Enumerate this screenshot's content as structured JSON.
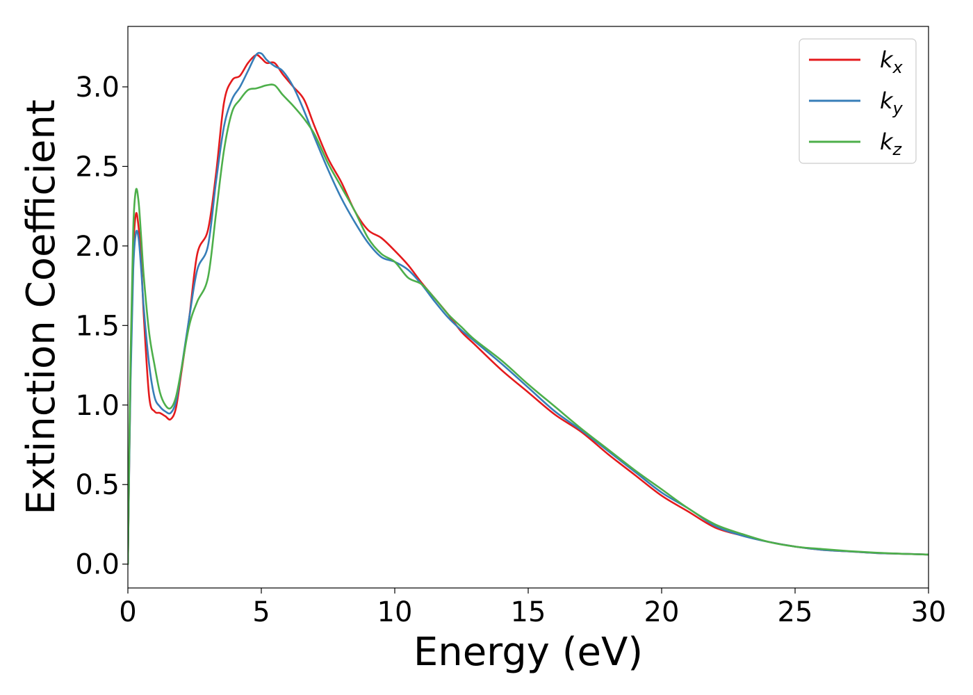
{
  "chart_data": {
    "type": "line",
    "title": "",
    "xlabel": "Energy (eV)",
    "ylabel": "Extinction Coefficient",
    "xlim": [
      0,
      30
    ],
    "ylim": [
      -0.15,
      3.38
    ],
    "xticks": [
      0,
      5,
      10,
      15,
      20,
      25,
      30
    ],
    "xtick_labels": [
      "0",
      "5",
      "10",
      "15",
      "20",
      "25",
      "30"
    ],
    "yticks": [
      0.0,
      0.5,
      1.0,
      1.5,
      2.0,
      2.5,
      3.0
    ],
    "ytick_labels": [
      "0.0",
      "0.5",
      "1.0",
      "1.5",
      "2.0",
      "2.5",
      "3.0"
    ],
    "grid": false,
    "legend_position": "top-right",
    "series": [
      {
        "name": "k",
        "subscript": "x",
        "color": "#e41a1c",
        "x": [
          0,
          0.1,
          0.2,
          0.3,
          0.4,
          0.5,
          0.6,
          0.8,
          1.0,
          1.2,
          1.4,
          1.6,
          1.8,
          2.0,
          2.3,
          2.6,
          3.0,
          3.3,
          3.6,
          3.9,
          4.2,
          4.5,
          4.8,
          5.0,
          5.2,
          5.5,
          5.8,
          6.2,
          6.6,
          7.0,
          7.5,
          8.0,
          8.5,
          9.0,
          9.5,
          10.0,
          10.5,
          11.0,
          11.5,
          12.0,
          12.5,
          13.0,
          14.0,
          15.0,
          16.0,
          17.0,
          18.0,
          19.0,
          20.0,
          21.0,
          22.0,
          23.0,
          24.0,
          25.0,
          26.0,
          27.0,
          28.0,
          29.0,
          30.0
        ],
        "values": [
          0.0,
          1.2,
          1.95,
          2.2,
          2.12,
          1.9,
          1.55,
          1.05,
          0.96,
          0.95,
          0.93,
          0.91,
          0.98,
          1.2,
          1.55,
          1.95,
          2.1,
          2.45,
          2.9,
          3.04,
          3.07,
          3.15,
          3.2,
          3.18,
          3.15,
          3.15,
          3.08,
          3.0,
          2.92,
          2.75,
          2.55,
          2.4,
          2.22,
          2.1,
          2.05,
          1.97,
          1.88,
          1.77,
          1.67,
          1.57,
          1.46,
          1.38,
          1.22,
          1.08,
          0.94,
          0.83,
          0.69,
          0.56,
          0.43,
          0.33,
          0.23,
          0.18,
          0.14,
          0.11,
          0.09,
          0.08,
          0.07,
          0.065,
          0.06
        ]
      },
      {
        "name": "k",
        "subscript": "y",
        "color": "#377eb8",
        "x": [
          0,
          0.1,
          0.2,
          0.3,
          0.4,
          0.5,
          0.6,
          0.8,
          1.0,
          1.2,
          1.4,
          1.6,
          1.8,
          2.0,
          2.3,
          2.6,
          3.0,
          3.3,
          3.6,
          3.9,
          4.2,
          4.5,
          4.8,
          5.0,
          5.2,
          5.5,
          5.8,
          6.2,
          6.6,
          7.0,
          7.5,
          8.0,
          8.5,
          9.0,
          9.5,
          10.0,
          10.5,
          11.0,
          11.5,
          12.0,
          12.5,
          13.0,
          14.0,
          15.0,
          16.0,
          17.0,
          18.0,
          19.0,
          20.0,
          21.0,
          22.0,
          23.0,
          24.0,
          25.0,
          26.0,
          27.0,
          28.0,
          29.0,
          30.0
        ],
        "values": [
          0.0,
          1.15,
          1.85,
          2.08,
          2.05,
          1.85,
          1.6,
          1.25,
          1.05,
          0.99,
          0.96,
          0.95,
          1.02,
          1.22,
          1.55,
          1.85,
          2.0,
          2.4,
          2.75,
          2.92,
          3.0,
          3.1,
          3.2,
          3.21,
          3.17,
          3.13,
          3.1,
          3.0,
          2.85,
          2.68,
          2.48,
          2.3,
          2.15,
          2.02,
          1.93,
          1.9,
          1.85,
          1.76,
          1.65,
          1.55,
          1.47,
          1.4,
          1.26,
          1.11,
          0.96,
          0.84,
          0.71,
          0.58,
          0.45,
          0.35,
          0.24,
          0.18,
          0.14,
          0.11,
          0.09,
          0.08,
          0.07,
          0.065,
          0.06
        ]
      },
      {
        "name": "k",
        "subscript": "z",
        "color": "#4daf4a",
        "x": [
          0,
          0.1,
          0.2,
          0.3,
          0.4,
          0.5,
          0.6,
          0.8,
          1.0,
          1.2,
          1.4,
          1.6,
          1.8,
          2.0,
          2.3,
          2.6,
          3.0,
          3.3,
          3.6,
          3.9,
          4.2,
          4.5,
          4.8,
          5.0,
          5.2,
          5.5,
          5.8,
          6.2,
          6.6,
          7.0,
          7.5,
          8.0,
          8.5,
          9.0,
          9.5,
          10.0,
          10.5,
          11.0,
          11.5,
          12.0,
          12.5,
          13.0,
          14.0,
          15.0,
          16.0,
          17.0,
          18.0,
          19.0,
          20.0,
          21.0,
          22.0,
          23.0,
          24.0,
          25.0,
          26.0,
          27.0,
          28.0,
          29.0,
          30.0
        ],
        "values": [
          0.0,
          1.3,
          2.1,
          2.35,
          2.28,
          2.05,
          1.8,
          1.45,
          1.25,
          1.08,
          1.0,
          0.98,
          1.05,
          1.22,
          1.5,
          1.65,
          1.8,
          2.2,
          2.6,
          2.84,
          2.92,
          2.98,
          2.99,
          3.0,
          3.01,
          3.01,
          2.95,
          2.88,
          2.8,
          2.7,
          2.52,
          2.37,
          2.22,
          2.05,
          1.95,
          1.9,
          1.8,
          1.76,
          1.67,
          1.57,
          1.49,
          1.41,
          1.28,
          1.13,
          0.99,
          0.85,
          0.72,
          0.59,
          0.47,
          0.35,
          0.25,
          0.19,
          0.14,
          0.11,
          0.095,
          0.082,
          0.072,
          0.065,
          0.06
        ]
      }
    ]
  }
}
